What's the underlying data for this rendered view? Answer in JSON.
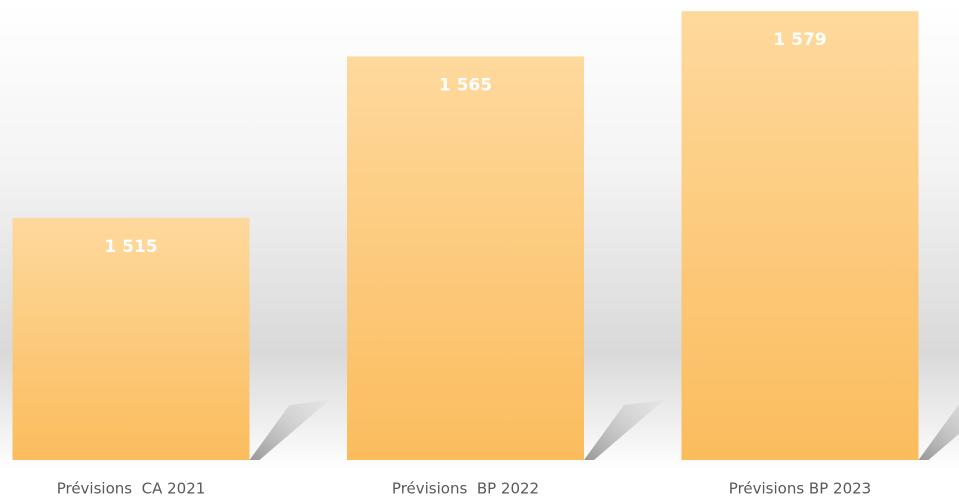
{
  "chart_data": {
    "type": "bar",
    "categories": [
      "Prévisions  CA 2021",
      "Prévisions  BP 2022",
      "Prévisions BP 2023"
    ],
    "values": [
      1515,
      1565,
      1579
    ],
    "value_labels": [
      "1 515",
      "1 565",
      "1 579"
    ],
    "ylim": [
      1440,
      1580
    ]
  }
}
